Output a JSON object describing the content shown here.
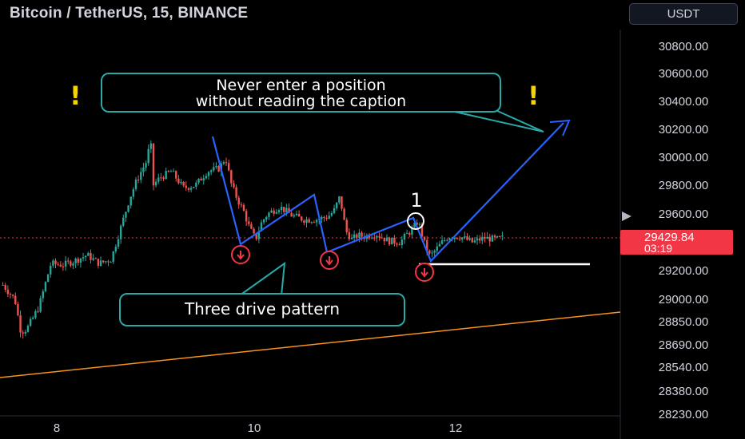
{
  "header": {
    "title": "Bitcoin / TetherUS, 15, BINANCE",
    "currency_button": "USDT"
  },
  "price_label": {
    "value": "29429.84",
    "countdown": "03:19"
  },
  "annotations": {
    "top_callout_line1": "Never enter a position",
    "top_callout_line2": "without reading the caption",
    "bottom_callout": "Three drive pattern",
    "warning_glyph": "!",
    "marker_label": "1"
  },
  "colors": {
    "background": "#000000",
    "candle_up": "#26a69a",
    "candle_down": "#ef5350",
    "drawing_line": "#2962ff",
    "trendline": "#f7931a",
    "callout_border": "#2aa8a8",
    "price_tag": "#f23645",
    "warning": "#f5d400"
  },
  "chart_data": {
    "type": "candlestick",
    "symbol": "Bitcoin / TetherUS",
    "interval": "15",
    "exchange": "BINANCE",
    "x_tick_labels": [
      "8",
      "10",
      "12"
    ],
    "y_tick_labels": [
      "30800.00",
      "30600.00",
      "30400.00",
      "30200.00",
      "30000.00",
      "29800.00",
      "29600.00",
      "29200.00",
      "29000.00",
      "28850.00",
      "28690.00",
      "28540.00",
      "28380.00",
      "28230.00"
    ],
    "last_price": 29429.84,
    "close_path": [
      [
        0,
        29100
      ],
      [
        2,
        29000
      ],
      [
        3,
        28780
      ],
      [
        4,
        28800
      ],
      [
        6,
        28950
      ],
      [
        8,
        29250
      ],
      [
        10,
        29240
      ],
      [
        12,
        29270
      ],
      [
        14,
        29310
      ],
      [
        16,
        29250
      ],
      [
        18,
        29280
      ],
      [
        19,
        29420
      ],
      [
        20,
        29560
      ],
      [
        21,
        29700
      ],
      [
        22,
        29810
      ],
      [
        23,
        29900
      ],
      [
        24,
        29980
      ],
      [
        24.5,
        30150
      ],
      [
        25,
        29800
      ],
      [
        26,
        29850
      ],
      [
        28,
        29900
      ],
      [
        30,
        29780
      ],
      [
        32,
        29800
      ],
      [
        34,
        29900
      ],
      [
        36,
        29920
      ],
      [
        37,
        30000
      ],
      [
        38,
        29800
      ],
      [
        39,
        29700
      ],
      [
        40,
        29620
      ],
      [
        41,
        29500
      ],
      [
        42,
        29420
      ],
      [
        43,
        29540
      ],
      [
        44,
        29600
      ],
      [
        46,
        29650
      ],
      [
        48,
        29590
      ],
      [
        50,
        29560
      ],
      [
        52,
        29560
      ],
      [
        54,
        29580
      ],
      [
        55,
        29620
      ],
      [
        56,
        29720
      ],
      [
        57,
        29480
      ],
      [
        58,
        29420
      ],
      [
        59,
        29450
      ],
      [
        60,
        29440
      ],
      [
        62,
        29460
      ],
      [
        64,
        29410
      ],
      [
        66,
        29400
      ],
      [
        67,
        29450
      ],
      [
        68,
        29490
      ],
      [
        69,
        29550
      ],
      [
        70,
        29400
      ],
      [
        71,
        29300
      ],
      [
        72,
        29350
      ],
      [
        73,
        29400
      ],
      [
        74,
        29440
      ],
      [
        76,
        29440
      ],
      [
        78,
        29400
      ],
      [
        80,
        29430
      ],
      [
        82,
        29420
      ],
      [
        83,
        29429.84
      ]
    ],
    "drawings": {
      "three_drive_zigzag": [
        {
          "x": "9 12:00",
          "y": 30150
        },
        {
          "x": "9 20:00",
          "y": 29400
        },
        {
          "x": "10 14:00",
          "y": 29720
        },
        {
          "x": "10 18:00",
          "y": 29270
        },
        {
          "x": "11 14:00",
          "y": 29570
        },
        {
          "x": "11 17:00",
          "y": 29180
        },
        {
          "x": "12 20:00",
          "y": 30250
        }
      ],
      "support_line_y": 29230,
      "trendline_from": {
        "x": "7 00:00",
        "y": 28520
      },
      "trendline_to": {
        "x": "13 12:00",
        "y": 28940
      }
    },
    "grid": false
  }
}
